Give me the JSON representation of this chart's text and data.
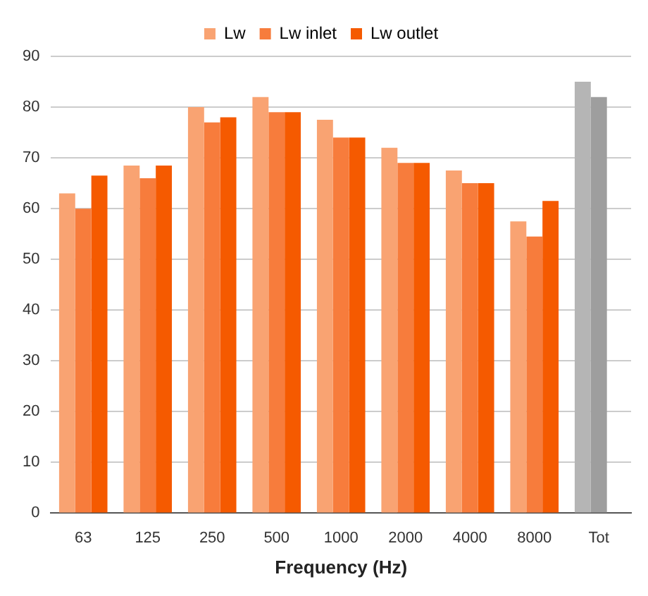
{
  "chart_data": {
    "type": "bar",
    "xlabel": "Frequency (Hz)",
    "categories": [
      "63",
      "125",
      "250",
      "500",
      "1000",
      "2000",
      "4000",
      "8000",
      "Tot"
    ],
    "series": [
      {
        "name": "Lw",
        "color": "#f9a372",
        "colors": [
          "#f9a372",
          "#f9a372",
          "#f9a372",
          "#f9a372",
          "#f9a372",
          "#f9a372",
          "#f9a372",
          "#f9a372",
          "#b5b5b5"
        ],
        "values": [
          63,
          68.5,
          80,
          82,
          77.5,
          72,
          67.5,
          57.5,
          85
        ]
      },
      {
        "name": "Lw inlet",
        "color": "#f77c3c",
        "colors": [
          "#f77c3c",
          "#f77c3c",
          "#f77c3c",
          "#f77c3c",
          "#f77c3c",
          "#f77c3c",
          "#f77c3c",
          "#f77c3c",
          "#9e9e9e"
        ],
        "values": [
          60,
          66,
          77,
          79,
          74,
          69,
          65,
          54.5,
          82
        ]
      },
      {
        "name": "Lw outlet",
        "color": "#f55a00",
        "values": [
          66.5,
          68.5,
          78,
          79,
          74,
          69,
          65,
          61.5,
          null
        ]
      }
    ],
    "ylim": [
      0,
      90
    ],
    "yticks": [
      0,
      10,
      20,
      30,
      40,
      50,
      60,
      70,
      80,
      90
    ],
    "grid": "y",
    "legend": "top"
  }
}
